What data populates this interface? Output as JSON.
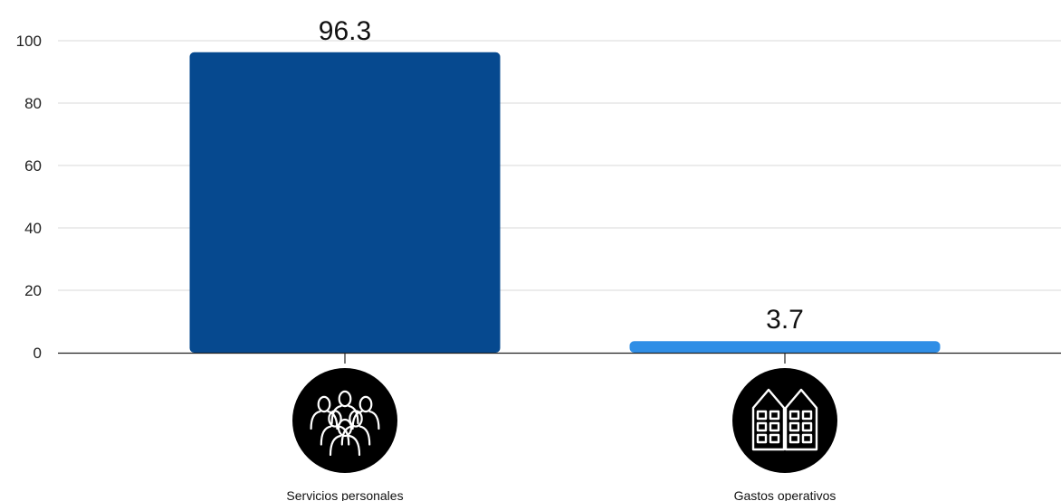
{
  "chart_data": {
    "type": "bar",
    "categories": [
      "Servicios personales",
      "Gastos operativos"
    ],
    "values": [
      96.3,
      3.7
    ],
    "value_labels": [
      "96.3",
      "3.7"
    ],
    "ylim": [
      0,
      100
    ],
    "yticks": [
      "0",
      "20",
      "40",
      "60",
      "80",
      "100"
    ],
    "grid": true,
    "bar_colors": [
      "#06498f",
      "#2f8ee6"
    ],
    "category_icons": [
      "people-group-icon",
      "buildings-icon"
    ]
  }
}
